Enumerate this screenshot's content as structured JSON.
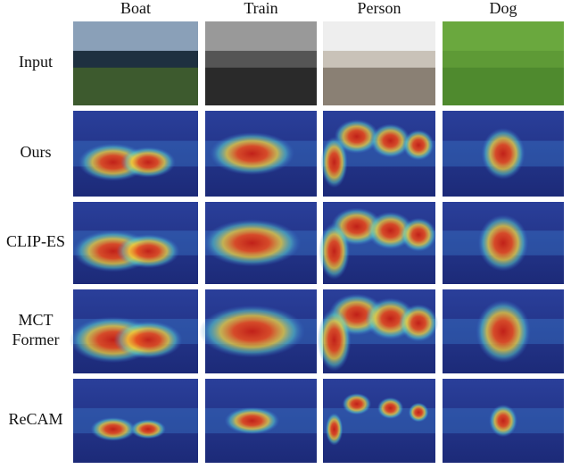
{
  "columns": [
    "Boat",
    "Train",
    "Person",
    "Dog"
  ],
  "rows": [
    {
      "lines": [
        "Input"
      ]
    },
    {
      "lines": [
        "Ours"
      ]
    },
    {
      "lines": [
        "CLIP-ES"
      ]
    },
    {
      "lines": [
        "MCT",
        "Former"
      ]
    },
    {
      "lines": [
        "ReCAM"
      ]
    }
  ]
}
